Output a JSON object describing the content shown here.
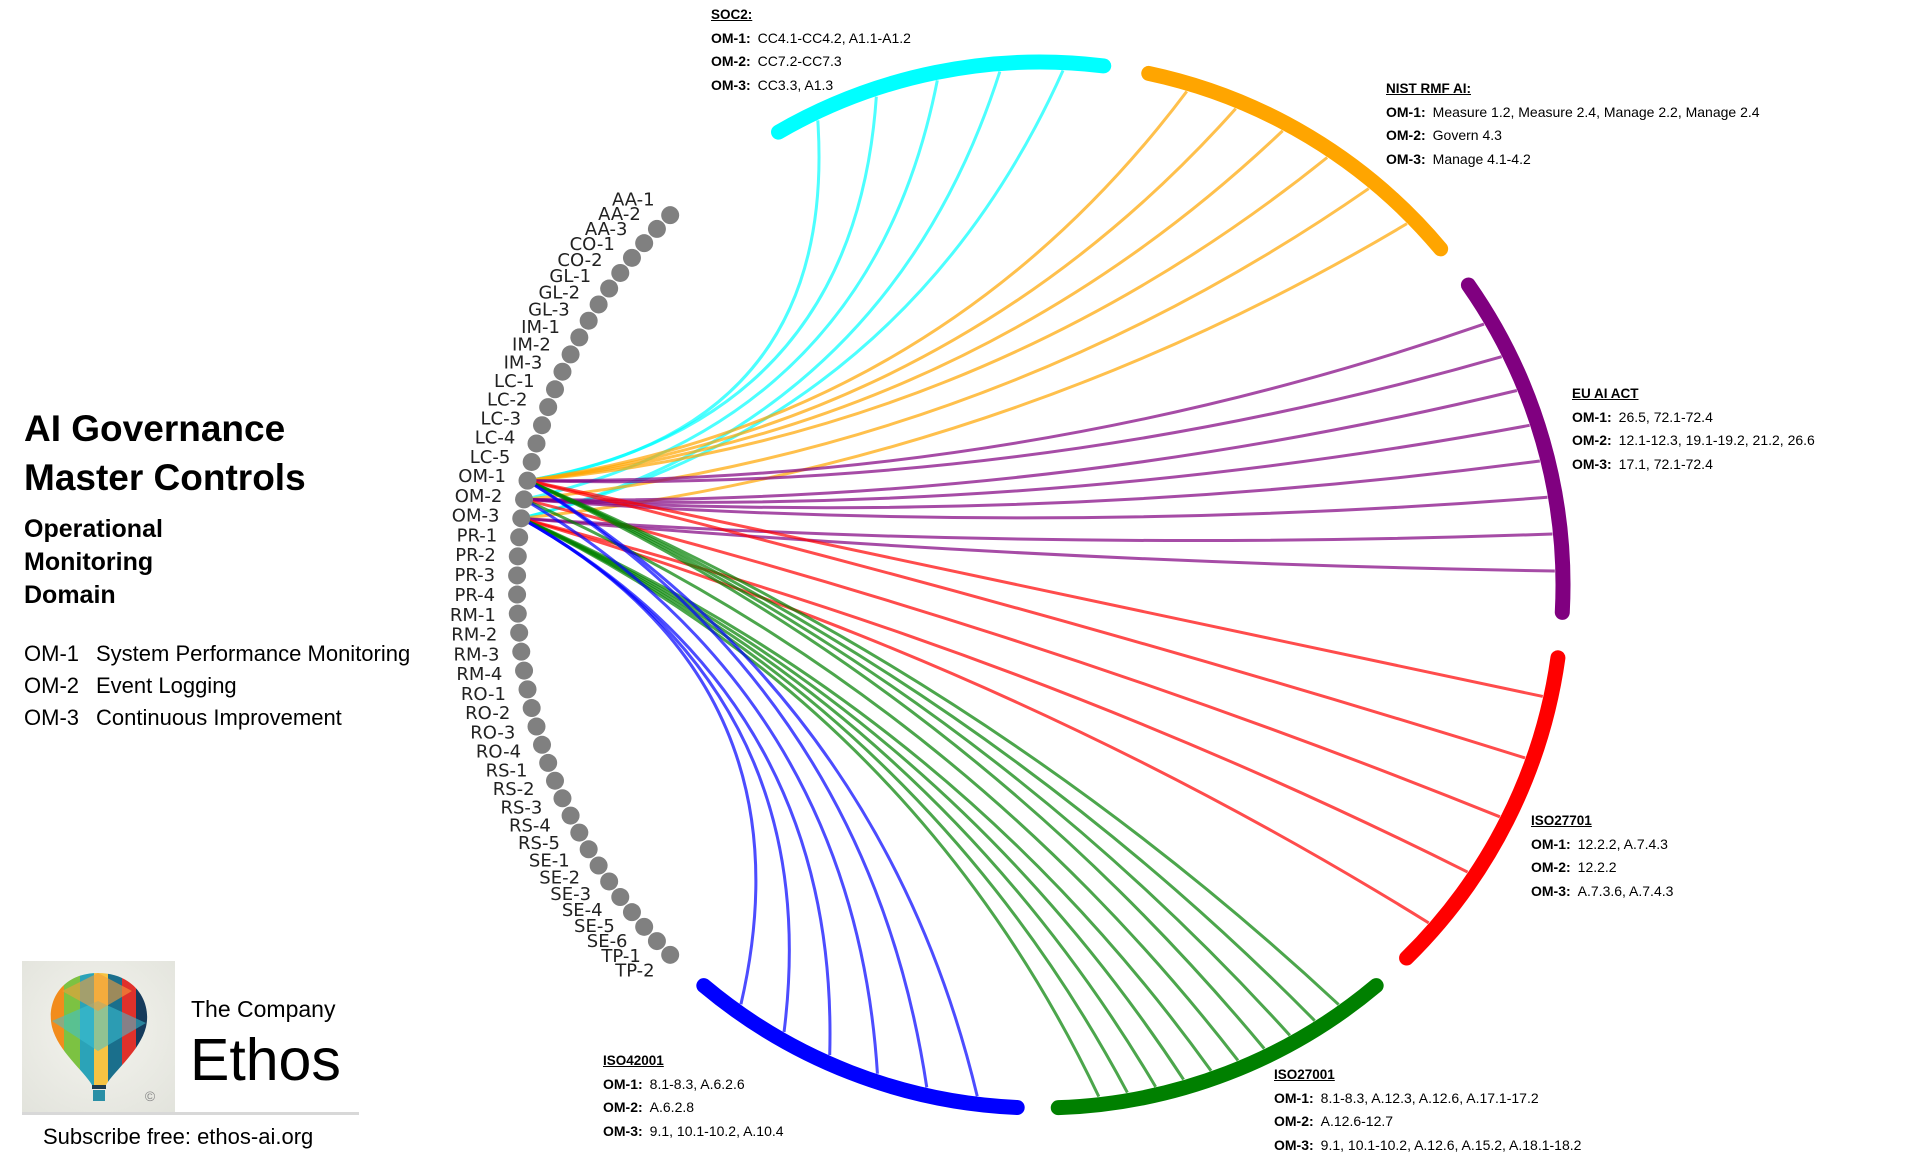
{
  "title": {
    "line1": "AI Governance",
    "line2": "Master Controls"
  },
  "domain": {
    "line1": "Operational",
    "line2": "Monitoring",
    "line3": "Domain"
  },
  "controls": [
    {
      "id": "OM-1",
      "name": "System Performance Monitoring"
    },
    {
      "id": "OM-2",
      "name": "Event Logging"
    },
    {
      "id": "OM-3",
      "name": "Continuous Improvement"
    }
  ],
  "brand": {
    "company": "The Company",
    "name": "Ethos",
    "subscribe": "Subscribe free: ethos-ai.org",
    "logo_mark": "©"
  },
  "chart_data": {
    "type": "chord",
    "nodes": [
      "AA-1",
      "AA-2",
      "AA-3",
      "CO-1",
      "CO-2",
      "GL-1",
      "GL-2",
      "GL-3",
      "IM-1",
      "IM-2",
      "IM-3",
      "LC-1",
      "LC-2",
      "LC-3",
      "LC-4",
      "LC-5",
      "OM-1",
      "OM-2",
      "OM-3",
      "PR-1",
      "PR-2",
      "PR-3",
      "PR-4",
      "RM-1",
      "RM-2",
      "RM-3",
      "RM-4",
      "RO-1",
      "RO-2",
      "RO-3",
      "RO-4",
      "RS-1",
      "RS-2",
      "RS-3",
      "RS-4",
      "RS-5",
      "SE-1",
      "SE-2",
      "SE-3",
      "SE-4",
      "SE-5",
      "SE-6",
      "TP-1",
      "TP-2"
    ],
    "node_color": "#808080",
    "frameworks": [
      {
        "key": "soc2",
        "label": "SOC2:",
        "color": "#00ffff",
        "mappings": [
          {
            "om": "OM-1:",
            "refs": "CC4.1-CC4.2,  A1.1-A1.2"
          },
          {
            "om": "OM-2:",
            "refs": "CC7.2-CC7.3"
          },
          {
            "om": "OM-3:",
            "refs": "CC3.3, A1.3"
          }
        ]
      },
      {
        "key": "nist",
        "label": "NIST RMF AI:",
        "color": "#ffa500",
        "mappings": [
          {
            "om": "OM-1:",
            "refs": "Measure 1.2, Measure 2.4, Manage 2.2,  Manage 2.4"
          },
          {
            "om": "OM-2:",
            "refs": "Govern 4.3"
          },
          {
            "om": "OM-3:",
            "refs": "Manage 4.1-4.2"
          }
        ]
      },
      {
        "key": "euai",
        "label": "EU AI ACT",
        "color": "#800080",
        "mappings": [
          {
            "om": "OM-1:",
            "refs": "26.5,  72.1-72.4"
          },
          {
            "om": "OM-2:",
            "refs": "12.1-12.3, 19.1-19.2, 21.2, 26.6"
          },
          {
            "om": "OM-3:",
            "refs": "17.1, 72.1-72.4"
          }
        ]
      },
      {
        "key": "iso27701",
        "label": "ISO27701",
        "color": "#ff0000",
        "mappings": [
          {
            "om": "OM-1:",
            "refs": "12.2.2,  A.7.4.3"
          },
          {
            "om": "OM-2:",
            "refs": "12.2.2"
          },
          {
            "om": "OM-3:",
            "refs": "A.7.3.6,  A.7.4.3"
          }
        ]
      },
      {
        "key": "iso27001",
        "label": "ISO27001",
        "color": "#008000",
        "mappings": [
          {
            "om": "OM-1:",
            "refs": "8.1-8.3,  A.12.3,  A.12.6,  A.17.1-17.2"
          },
          {
            "om": "OM-2:",
            "refs": "A.12.6-12.7"
          },
          {
            "om": "OM-3:",
            "refs": "9.1,  10.1-10.2,  A.12.6, A.15.2,  A.18.1-18.2"
          }
        ]
      },
      {
        "key": "iso42001",
        "label": "ISO42001",
        "color": "#0000ff",
        "mappings": [
          {
            "om": "OM-1:",
            "refs": "8.1-8.3,  A.6.2.6"
          },
          {
            "om": "OM-2:",
            "refs": "A.6.2.8"
          },
          {
            "om": "OM-3:",
            "refs": "9.1, 10.1-10.2,  A.10.4"
          }
        ]
      }
    ]
  }
}
